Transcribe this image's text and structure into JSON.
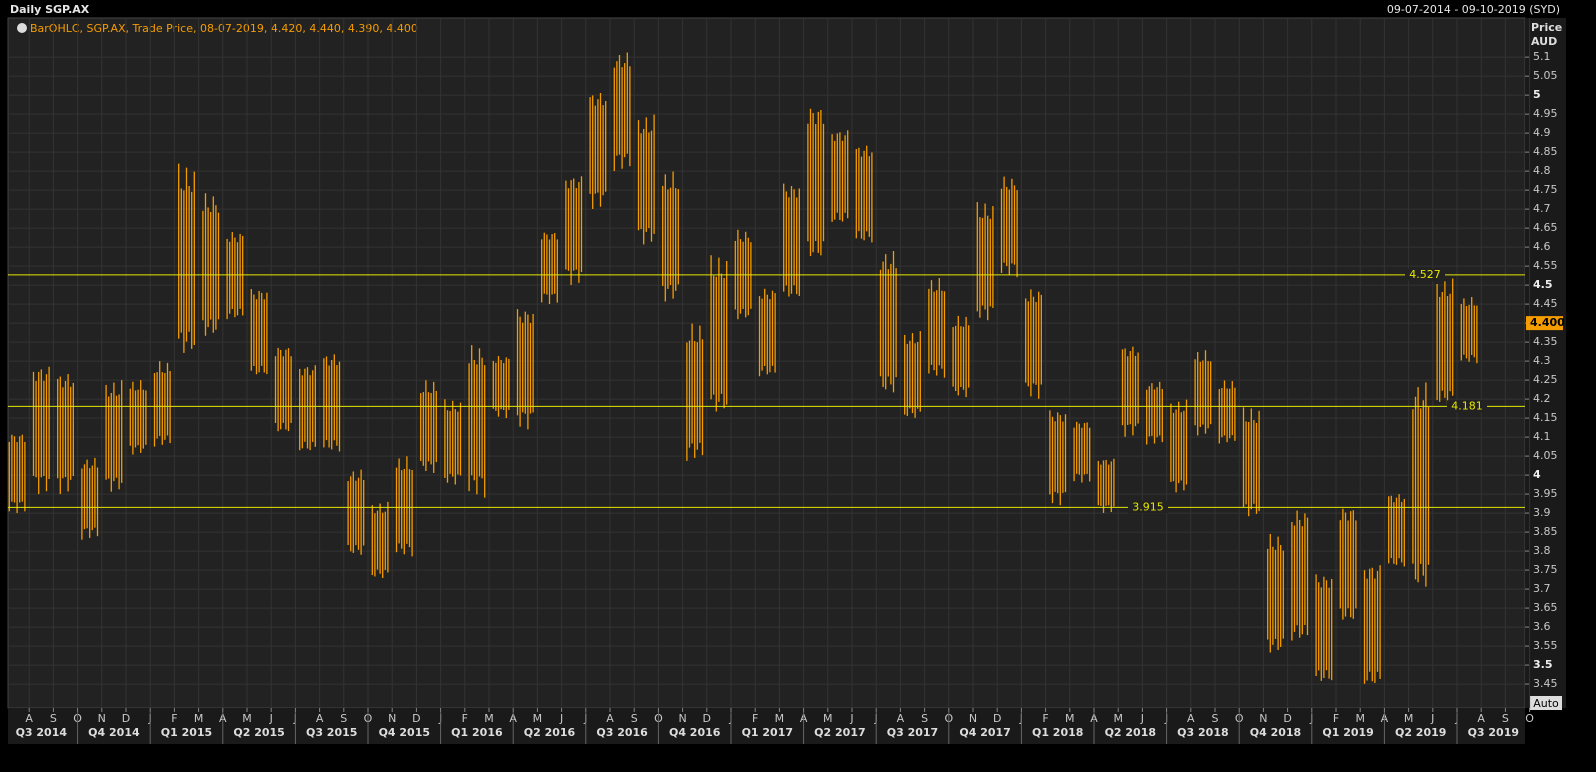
{
  "chart_data": {
    "type": "range_bar",
    "title": "Daily SGP.AX",
    "date_range": "09-07-2014 - 09-10-2019 (SYD)",
    "legend": "BarOHLC, SGP.AX, Trade Price, 08-07-2019, 4.420, 4.440, 4.390, 4.400",
    "y_axis_title": "Price",
    "y_axis_unit": "AUD",
    "button": "Auto",
    "color": "#f59c00",
    "categories": [
      null,
      "A",
      "S",
      "O",
      "N",
      "D",
      "J",
      "F",
      "M",
      "A",
      "M",
      "J",
      "J",
      "A",
      "S",
      "O",
      "N",
      "D",
      "J",
      "F",
      "M",
      "A",
      "M",
      "J",
      "J",
      "A",
      "S",
      "O",
      "N",
      "D",
      "J",
      "F",
      "M",
      "A",
      "M",
      "J",
      "J",
      "A",
      "S",
      "O",
      "N",
      "D",
      "J",
      "F",
      "M",
      "A",
      "M",
      "J",
      "J",
      "A",
      "S",
      "O",
      "N",
      "D",
      "J",
      "F",
      "M",
      "A",
      "M",
      "J",
      "J",
      "A",
      "S",
      "O"
    ],
    "quarters": [
      "Q3 2014",
      "Q4 2014",
      "Q1 2015",
      "Q2 2015",
      "Q3 2015",
      "Q4 2015",
      "Q1 2016",
      "Q2 2016",
      "Q3 2016",
      "Q4 2016",
      "Q1 2017",
      "Q2 2017",
      "Q3 2017",
      "Q4 2017",
      "Q1 2018",
      "Q2 2018",
      "Q3 2018",
      "Q4 2018",
      "Q1 2019",
      "Q2 2019",
      "Q3 2019"
    ],
    "high": [
      4.12,
      4.3,
      4.28,
      4.05,
      4.25,
      4.25,
      4.3,
      4.82,
      4.75,
      4.65,
      4.5,
      4.35,
      4.3,
      4.33,
      4.02,
      3.93,
      4.05,
      4.25,
      4.2,
      4.35,
      4.32,
      4.45,
      4.65,
      4.8,
      5.02,
      5.12,
      4.95,
      4.8,
      4.4,
      4.58,
      4.65,
      4.5,
      4.78,
      4.99,
      4.92,
      4.88,
      4.6,
      4.38,
      4.52,
      4.42,
      4.72,
      4.79,
      4.5,
      4.18,
      4.15,
      4.05,
      4.35,
      4.25,
      4.2,
      4.33,
      4.25,
      4.18,
      3.85,
      3.92,
      3.75,
      3.93,
      3.78,
      3.96,
      4.26,
      4.52,
      4.47,
      null,
      null,
      null
    ],
    "low": [
      3.9,
      3.95,
      3.95,
      3.83,
      3.95,
      4.05,
      4.07,
      4.3,
      4.35,
      4.4,
      4.25,
      4.1,
      4.05,
      4.05,
      3.78,
      3.72,
      3.78,
      4.0,
      3.97,
      3.94,
      4.15,
      4.12,
      4.45,
      4.5,
      4.7,
      4.8,
      4.6,
      4.45,
      4.03,
      4.15,
      4.4,
      4.25,
      4.45,
      4.55,
      4.65,
      4.6,
      4.2,
      4.14,
      4.25,
      4.2,
      4.4,
      4.52,
      4.2,
      3.92,
      3.98,
      3.9,
      4.1,
      4.08,
      3.95,
      4.1,
      4.08,
      3.88,
      3.52,
      3.55,
      3.44,
      3.6,
      3.43,
      3.75,
      3.68,
      4.17,
      4.29,
      null,
      null,
      null
    ],
    "hlines": [
      4.527,
      4.181,
      3.915
    ],
    "last_price": {
      "value": 4.4,
      "label": "4.400"
    },
    "ylim": [
      3.387,
      5.203
    ],
    "yticks": [
      3.45,
      3.5,
      3.55,
      3.6,
      3.65,
      3.7,
      3.75,
      3.8,
      3.85,
      3.9,
      3.95,
      4,
      4.05,
      4.1,
      4.15,
      4.2,
      4.25,
      4.3,
      4.35,
      4.4,
      4.45,
      4.5,
      4.55,
      4.6,
      4.65,
      4.7,
      4.75,
      4.8,
      4.85,
      4.9,
      4.95,
      5,
      5.05,
      5.1
    ],
    "grid": true
  }
}
